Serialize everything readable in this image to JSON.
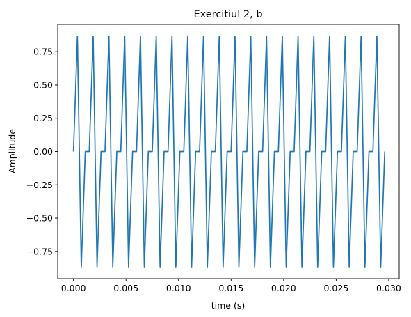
{
  "chart_data": {
    "type": "line",
    "title": "Exercitiul 2, b",
    "xlabel": "time (s)",
    "ylabel": "Amplitude",
    "xlim": [
      -0.0015,
      0.031
    ],
    "ylim": [
      -0.955,
      0.955
    ],
    "x_ticks": [
      0.0,
      0.005,
      0.01,
      0.015,
      0.02,
      0.025,
      0.03
    ],
    "x_tick_labels": [
      "0.000",
      "0.005",
      "0.010",
      "0.015",
      "0.020",
      "0.025",
      "0.030"
    ],
    "y_ticks": [
      -0.75,
      -0.5,
      -0.25,
      0.0,
      0.25,
      0.5,
      0.75
    ],
    "y_tick_labels": [
      "−0.75",
      "−0.50",
      "−0.25",
      "0.00",
      "0.25",
      "0.50",
      "0.75"
    ],
    "grid": false,
    "line_color": "#1f77b4",
    "series": [
      {
        "x": [
          0.0,
          0.000375,
          0.0007425,
          0.001125,
          0.0015,
          0.001875,
          0.0022425,
          0.002625,
          0.003,
          0.003375,
          0.0037425,
          0.004125,
          0.0045,
          0.004875,
          0.0052425,
          0.005625,
          0.006,
          0.006375,
          0.0067425,
          0.007125,
          0.0075,
          0.007875,
          0.0082425,
          0.008625,
          0.009,
          0.009375,
          0.0097425,
          0.010125,
          0.0105,
          0.010875,
          0.0112425,
          0.011625,
          0.012,
          0.012375,
          0.0127425,
          0.013125,
          0.0135,
          0.013875,
          0.0142425,
          0.014625,
          0.015,
          0.015375,
          0.0157425,
          0.016125,
          0.0165,
          0.016875,
          0.0172425,
          0.017625,
          0.018,
          0.018375,
          0.0187425,
          0.019125,
          0.0195,
          0.019875,
          0.0202425,
          0.020625,
          0.021,
          0.021375,
          0.0217425,
          0.022125,
          0.0225,
          0.022875,
          0.0232425,
          0.023625,
          0.024,
          0.024375,
          0.0247425,
          0.025125,
          0.0255,
          0.025875,
          0.0262425,
          0.026625,
          0.027,
          0.027375,
          0.0277425,
          0.028125,
          0.0285,
          0.028875,
          0.0292425,
          0.029625
        ],
        "y": [
          0.0,
          0.866,
          -0.866,
          0.0,
          0.0,
          0.866,
          -0.866,
          0.0,
          0.0,
          0.866,
          -0.866,
          0.0,
          0.0,
          0.866,
          -0.866,
          0.0,
          0.0,
          0.866,
          -0.866,
          0.0,
          0.0,
          0.866,
          -0.866,
          0.0,
          0.0,
          0.866,
          -0.866,
          0.0,
          0.0,
          0.866,
          -0.866,
          0.0,
          0.0,
          0.866,
          -0.866,
          0.0,
          0.0,
          0.866,
          -0.866,
          0.0,
          0.0,
          0.866,
          -0.866,
          0.0,
          0.0,
          0.866,
          -0.866,
          0.0,
          0.0,
          0.866,
          -0.866,
          0.0,
          0.0,
          0.866,
          -0.866,
          0.0,
          0.0,
          0.866,
          -0.866,
          0.0,
          0.0,
          0.866,
          -0.866,
          0.0,
          0.0,
          0.866,
          -0.866,
          0.0,
          0.0,
          0.866,
          -0.866,
          0.0,
          0.0,
          0.866,
          -0.866,
          0.0,
          0.0,
          0.866,
          -0.866,
          0.0
        ]
      }
    ]
  }
}
